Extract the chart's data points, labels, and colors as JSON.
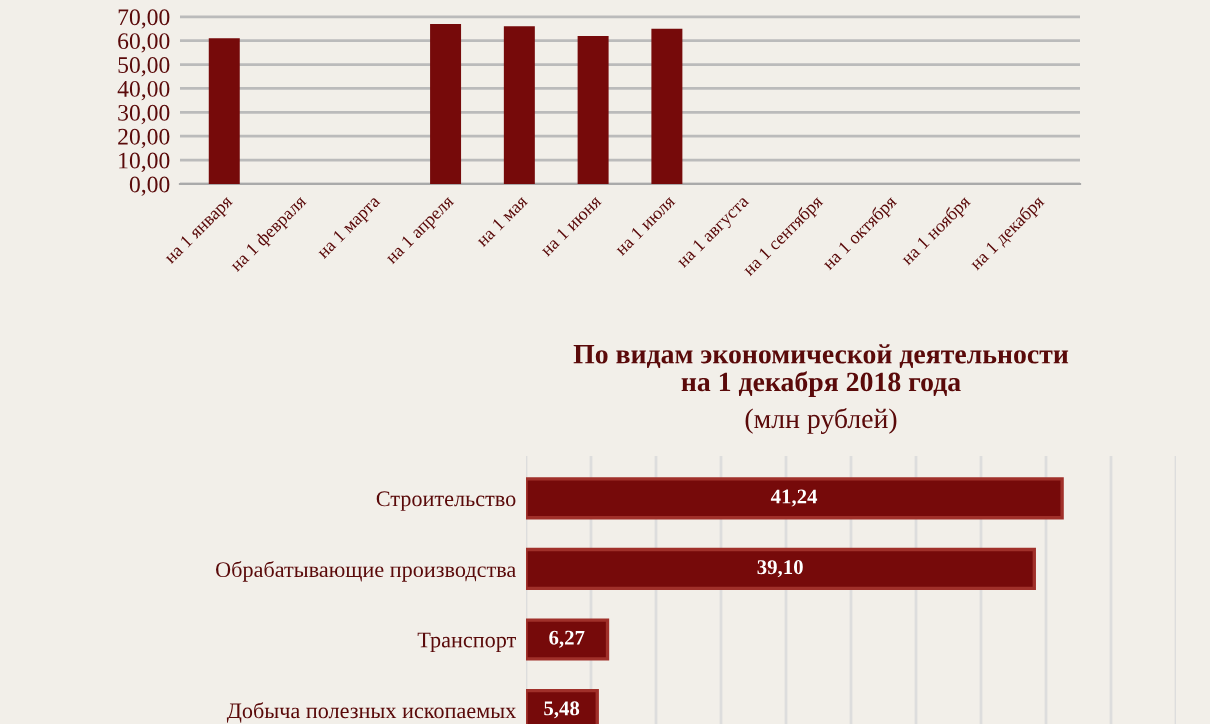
{
  "chart_data": [
    {
      "type": "bar",
      "categories": [
        "на 1 января",
        "на 1 февраля",
        "на 1 марта",
        "на 1 апреля",
        "на 1 мая",
        "на 1 июня",
        "на 1 июля",
        "на 1 августа",
        "на 1 сентября",
        "на 1 октября",
        "на 1 ноября",
        "на 1 декабря"
      ],
      "values": [
        61,
        null,
        null,
        67,
        66,
        62,
        65,
        null,
        null,
        null,
        null,
        null
      ],
      "color": "#760a0a",
      "ylim": [
        0,
        72
      ],
      "yticks": [
        {
          "value": 0,
          "label": "0,00"
        },
        {
          "value": 10,
          "label": "10,00"
        },
        {
          "value": 20,
          "label": "20,00"
        },
        {
          "value": 30,
          "label": "30,00"
        },
        {
          "value": 40,
          "label": "40,00"
        },
        {
          "value": 50,
          "label": "50,00"
        },
        {
          "value": 60,
          "label": "60,00"
        },
        {
          "value": 70,
          "label": "70,00"
        }
      ],
      "grid": "y"
    },
    {
      "type": "bar",
      "orientation": "horizontal",
      "title": "По видам экономической деятельности\nна 1 декабря 2018 года",
      "subtitle": "(млн рублей)",
      "categories": [
        "Строительство",
        "Обрабатывающие производства",
        "Транспорт",
        "Добыча полезных ископаемых"
      ],
      "values": [
        41.24,
        39.1,
        6.27,
        5.48
      ],
      "value_labels": [
        "41,24",
        "39,10",
        "6,27",
        "5,48"
      ],
      "color": "#760a0a",
      "xlim": [
        0,
        50
      ],
      "xticks": [
        {
          "value": 0,
          "label": null
        },
        {
          "value": 5,
          "label": null
        },
        {
          "value": 10,
          "label": null
        },
        {
          "value": 15,
          "label": null
        },
        {
          "value": 20,
          "label": null
        },
        {
          "value": 25,
          "label": null
        },
        {
          "value": 30,
          "label": null
        },
        {
          "value": 35,
          "label": null
        },
        {
          "value": 40,
          "label": null
        },
        {
          "value": 45,
          "label": null
        },
        {
          "value": 50,
          "label": null
        }
      ],
      "grid": "x",
      "tick_labels": "y"
    }
  ]
}
